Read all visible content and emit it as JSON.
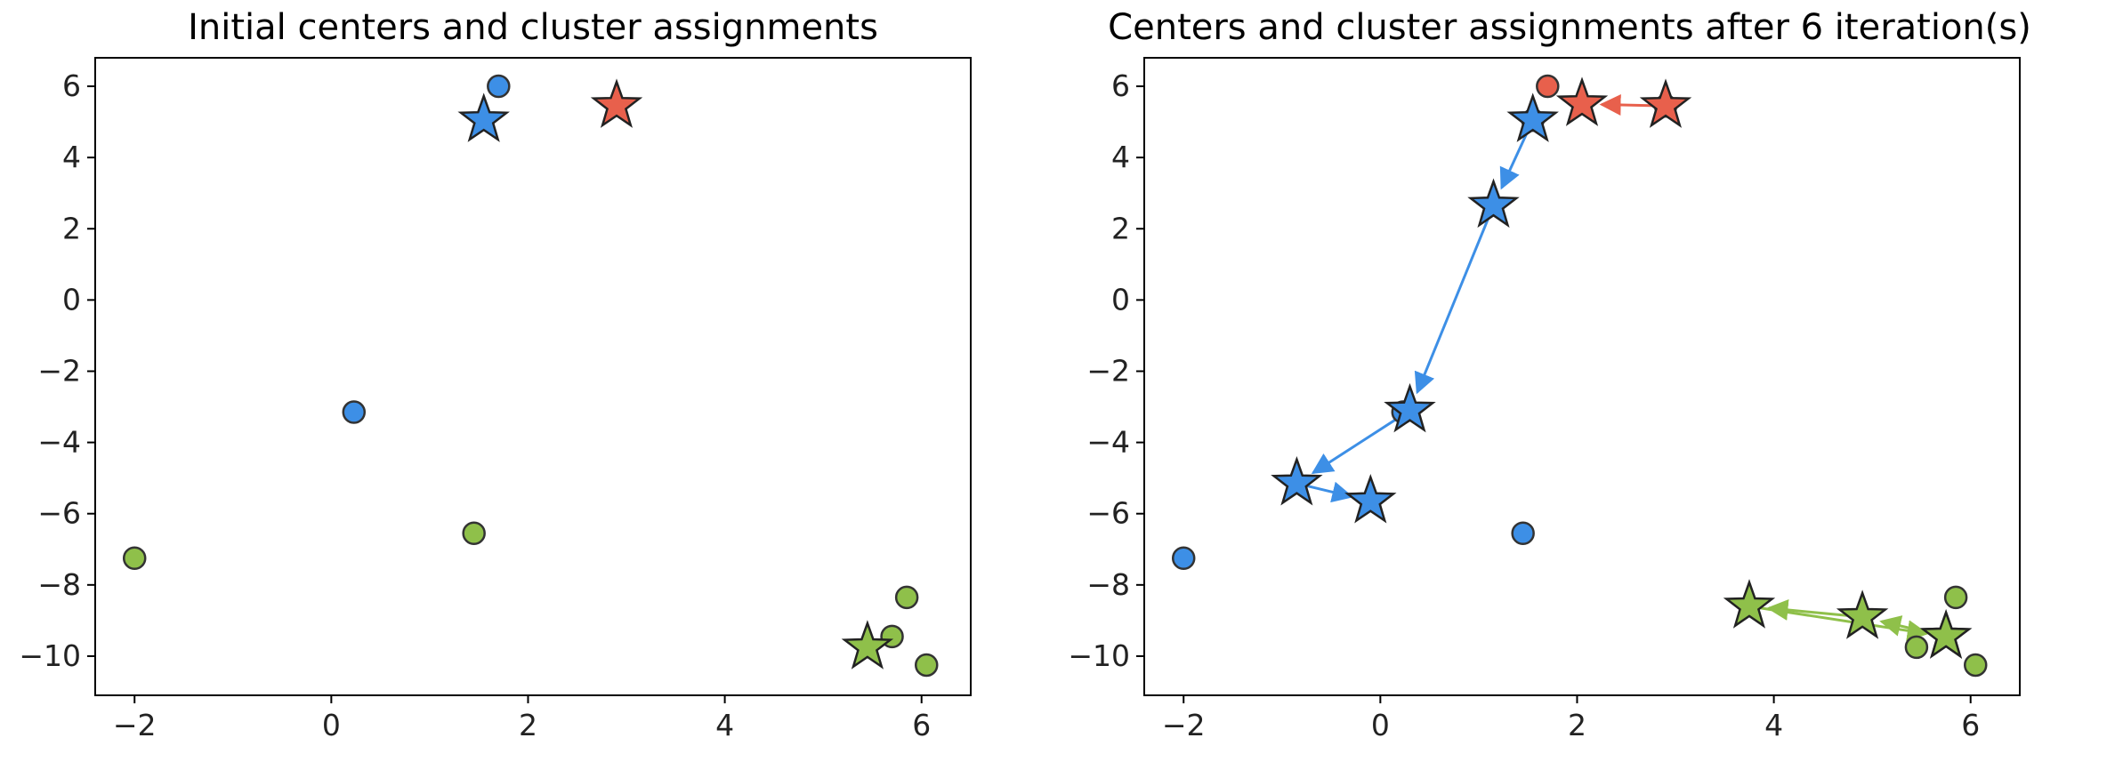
{
  "chart_data": [
    {
      "type": "scatter",
      "title": "Initial centers and cluster assignments",
      "xlim": [
        -2.4,
        6.5
      ],
      "ylim": [
        -11.1,
        6.8
      ],
      "xticks": [
        -2,
        0,
        2,
        4,
        6
      ],
      "xtick_labels": [
        "−2",
        "0",
        "2",
        "4",
        "6"
      ],
      "yticks": [
        6,
        4,
        2,
        0,
        -2,
        -4,
        -6,
        -8,
        -10
      ],
      "ytick_labels": [
        "6",
        "4",
        "2",
        "0",
        "−2",
        "−4",
        "−6",
        "−8",
        "−10"
      ],
      "grid": false,
      "colors": {
        "red": "#e8604c",
        "blue": "#3d8fe6",
        "green": "#8fc04a"
      },
      "points": [
        {
          "x": 1.7,
          "y": 6.0,
          "cluster": "blue"
        },
        {
          "x": 0.23,
          "y": -3.15,
          "cluster": "blue"
        },
        {
          "x": -2.0,
          "y": -7.25,
          "cluster": "green"
        },
        {
          "x": 1.45,
          "y": -6.55,
          "cluster": "green"
        },
        {
          "x": 5.85,
          "y": -8.35,
          "cluster": "green"
        },
        {
          "x": 5.7,
          "y": -9.45,
          "cluster": "green"
        },
        {
          "x": 6.05,
          "y": -10.25,
          "cluster": "green"
        }
      ],
      "centers": [
        {
          "x": 1.55,
          "y": 5.05,
          "cluster": "blue"
        },
        {
          "x": 2.9,
          "y": 5.45,
          "cluster": "red"
        },
        {
          "x": 5.45,
          "y": -9.75,
          "cluster": "green"
        }
      ],
      "trajectories": []
    },
    {
      "type": "scatter",
      "title": "Centers and cluster assignments after 6 iteration(s)",
      "xlim": [
        -2.4,
        6.5
      ],
      "ylim": [
        -11.1,
        6.8
      ],
      "xticks": [
        -2,
        0,
        2,
        4,
        6
      ],
      "xtick_labels": [
        "−2",
        "0",
        "2",
        "4",
        "6"
      ],
      "yticks": [
        6,
        4,
        2,
        0,
        -2,
        -4,
        -6,
        -8,
        -10
      ],
      "ytick_labels": [
        "6",
        "4",
        "2",
        "0",
        "−2",
        "−4",
        "−6",
        "−8",
        "−10"
      ],
      "grid": false,
      "colors": {
        "red": "#e8604c",
        "blue": "#3d8fe6",
        "green": "#8fc04a"
      },
      "points": [
        {
          "x": 1.7,
          "y": 6.0,
          "cluster": "red"
        },
        {
          "x": 1.55,
          "y": 5.05,
          "cluster": "red"
        },
        {
          "x": 2.9,
          "y": 5.45,
          "cluster": "red"
        },
        {
          "x": 0.23,
          "y": -3.15,
          "cluster": "blue"
        },
        {
          "x": -2.0,
          "y": -7.25,
          "cluster": "blue"
        },
        {
          "x": 1.45,
          "y": -6.55,
          "cluster": "blue"
        },
        {
          "x": 5.85,
          "y": -8.35,
          "cluster": "green"
        },
        {
          "x": 5.45,
          "y": -9.75,
          "cluster": "green"
        },
        {
          "x": 6.05,
          "y": -10.25,
          "cluster": "green"
        }
      ],
      "centers": [],
      "trajectories": [
        {
          "cluster": "red",
          "path": [
            {
              "x": 2.9,
              "y": 5.45
            },
            {
              "x": 2.05,
              "y": 5.5
            }
          ]
        },
        {
          "cluster": "blue",
          "path": [
            {
              "x": 1.55,
              "y": 5.05
            },
            {
              "x": 1.15,
              "y": 2.65
            },
            {
              "x": 0.3,
              "y": -3.1
            },
            {
              "x": -0.85,
              "y": -5.15
            },
            {
              "x": -0.1,
              "y": -5.65
            }
          ]
        },
        {
          "cluster": "green",
          "path": [
            {
              "x": 5.75,
              "y": -9.45
            },
            {
              "x": 4.9,
              "y": -8.9
            },
            {
              "x": 3.75,
              "y": -8.6
            },
            {
              "x": 5.75,
              "y": -9.45
            }
          ]
        }
      ]
    }
  ]
}
